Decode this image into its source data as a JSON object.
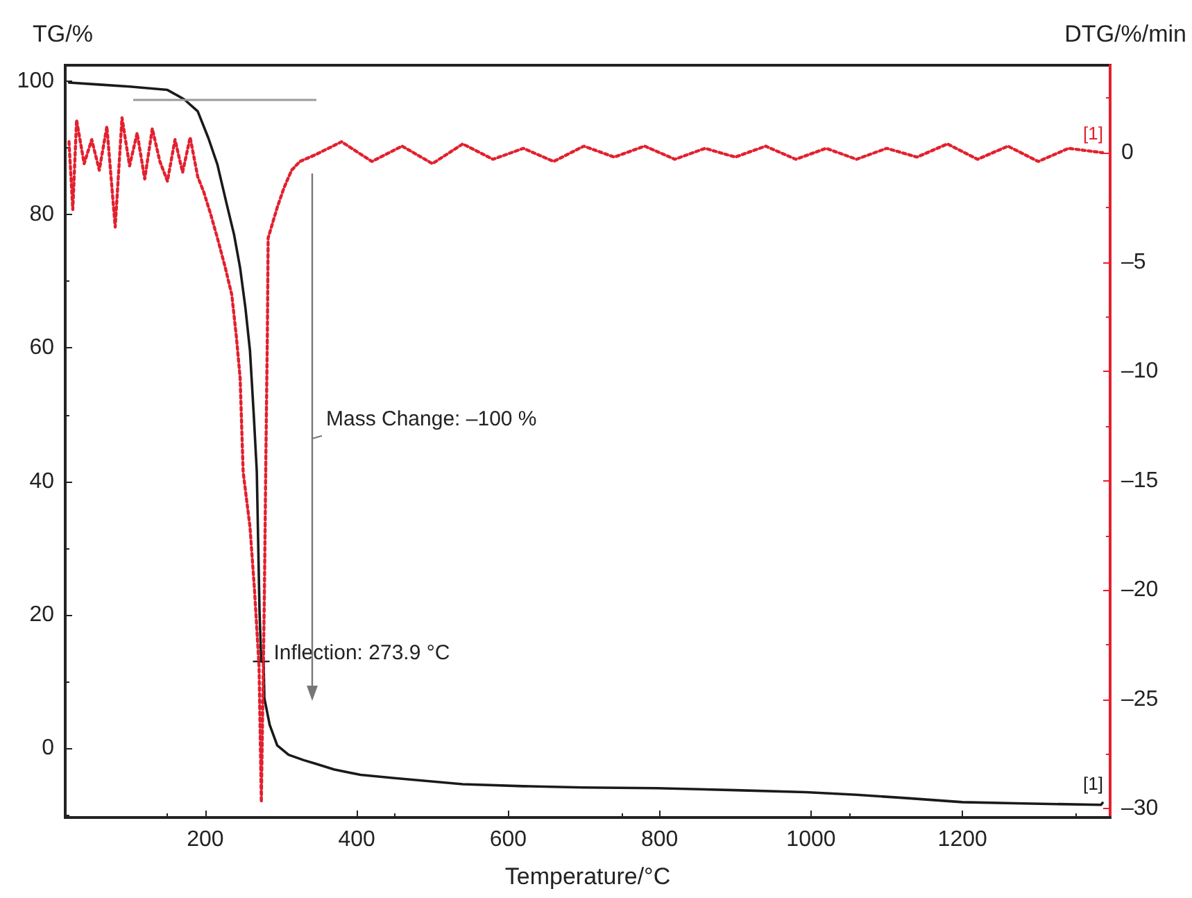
{
  "chart_data": {
    "type": "line",
    "xlabel": "Temperature/°C",
    "ylabel": "TG/%",
    "y2label": "DTG/%/min",
    "xlim": [
      15,
      1395
    ],
    "xticks": [
      200,
      400,
      600,
      800,
      1000,
      1200
    ],
    "ylim": [
      -10.4,
      102.4
    ],
    "yticks": [
      0,
      20,
      40,
      60,
      80,
      100
    ],
    "y2lim": [
      -30.4,
      4
    ],
    "y2ticks": [
      {
        "value": -30,
        "label": "–30"
      },
      {
        "value": -25,
        "label": "–25"
      },
      {
        "value": -20,
        "label": "–20"
      },
      {
        "value": -15,
        "label": "–15"
      },
      {
        "value": -10,
        "label": "–10"
      },
      {
        "value": -5,
        "label": "–5"
      },
      0
    ],
    "grid": false,
    "legend": false,
    "marker": "none",
    "series": [
      {
        "name": "[1]",
        "color": "#1a1a1a",
        "line_style": "solid",
        "x": [
          20,
          60,
          100,
          150,
          172,
          190,
          204,
          216,
          228,
          238,
          246,
          253,
          259,
          264,
          268,
          271.6,
          273.9,
          277,
          278,
          285,
          295,
          310,
          330,
          345,
          370,
          405,
          450,
          540,
          620,
          699,
          796,
          900,
          993,
          1060,
          1127,
          1200,
          1280,
          1383,
          1385
        ],
        "values": [
          99.8,
          99.5,
          99.2,
          98.7,
          97.3,
          95.5,
          91.5,
          87.5,
          81.7,
          77,
          72,
          66,
          59.6,
          50,
          41.5,
          20.6,
          13,
          12.9,
          7.5,
          3.5,
          0.4,
          -1,
          -1.8,
          -2.3,
          -3.2,
          -4,
          -4.5,
          -5.4,
          -5.7,
          -5.9,
          -6,
          -6.3,
          -6.6,
          -7,
          -7.5,
          -8.1,
          -8.3,
          -8.5,
          -8.2
        ]
      },
      {
        "name": "[1]",
        "axis": "y2",
        "color": "#e3202e",
        "line_style": "dotted",
        "x": [
          20,
          25,
          30,
          40,
          50,
          60,
          70,
          81,
          90,
          100,
          110,
          120,
          130,
          140,
          150,
          160,
          170,
          180,
          190,
          198,
          207,
          216,
          226,
          235,
          241,
          246,
          250,
          255,
          259,
          265,
          271,
          274,
          278,
          280,
          282,
          283,
          289,
          295,
          304,
          314,
          325,
          345,
          380,
          420,
          460,
          500,
          540,
          580,
          620,
          660,
          700,
          740,
          780,
          820,
          860,
          900,
          940,
          980,
          1020,
          1060,
          1100,
          1140,
          1180,
          1220,
          1260,
          1300,
          1340,
          1385
        ],
        "values": [
          0.5,
          -2.6,
          1.5,
          -0.5,
          0.6,
          -0.8,
          1.2,
          -3.4,
          1.6,
          -0.6,
          0.9,
          -1.2,
          1.1,
          -0.4,
          -1.3,
          0.6,
          -0.9,
          0.7,
          -1.1,
          -1.8,
          -2.8,
          -3.9,
          -5.2,
          -6.5,
          -8.4,
          -10.3,
          -14.6,
          -16,
          -17.1,
          -20,
          -23.5,
          -29.7,
          -20.3,
          -13.9,
          -8.2,
          -3.9,
          -3.2,
          -2.5,
          -1.6,
          -0.8,
          -0.4,
          -0.1,
          0.5,
          -0.4,
          0.3,
          -0.5,
          0.4,
          -0.3,
          0.2,
          -0.4,
          0.3,
          -0.2,
          0.3,
          -0.3,
          0.2,
          -0.2,
          0.3,
          -0.3,
          0.2,
          -0.3,
          0.2,
          -0.2,
          0.4,
          -0.3,
          0.3,
          -0.4,
          0.2,
          0
        ]
      }
    ],
    "annotations": [
      "Mass Change: –100 %",
      {
        "text": "Inflection: 273.9 °C",
        "x": 273.9,
        "y": 13
      }
    ]
  }
}
